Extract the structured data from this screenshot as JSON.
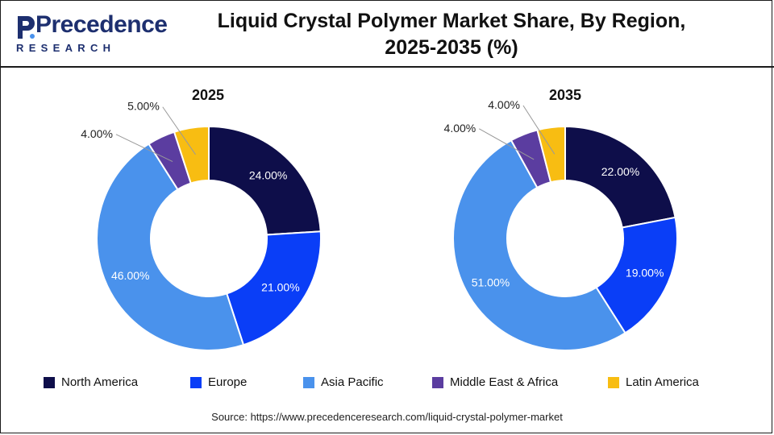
{
  "brand": {
    "name": "Precedence",
    "sub": "RESEARCH"
  },
  "title_line1": "Liquid Crystal Polymer Market Share, By Region,",
  "title_line2": "2025-2035 (%)",
  "source": "Source: https://www.precedenceresearch.com/liquid-crystal-polymer-market",
  "colors": {
    "North America": "#0e0e4a",
    "Europe": "#0a3ef7",
    "Asia Pacific": "#4a92ec",
    "Middle East & Africa": "#5b3da0",
    "Latin America": "#f8bd12"
  },
  "chart_data": [
    {
      "type": "donut",
      "title": "2025",
      "categories": [
        "North America",
        "Europe",
        "Asia Pacific",
        "Middle East & Africa",
        "Latin America"
      ],
      "values": [
        24,
        21,
        46,
        4,
        5
      ],
      "labels": [
        "24.00%",
        "21.00%",
        "46.00%",
        "4.00%",
        "5.00%"
      ]
    },
    {
      "type": "donut",
      "title": "2035",
      "categories": [
        "North America",
        "Europe",
        "Asia Pacific",
        "Middle East & Africa",
        "Latin America"
      ],
      "values": [
        22,
        19,
        51,
        4,
        4
      ],
      "labels": [
        "22.00%",
        "19.00%",
        "51.00%",
        "4.00%",
        "4.00%"
      ]
    }
  ],
  "legend": [
    "North America",
    "Europe",
    "Asia Pacific",
    "Middle East & Africa",
    "Latin America"
  ]
}
